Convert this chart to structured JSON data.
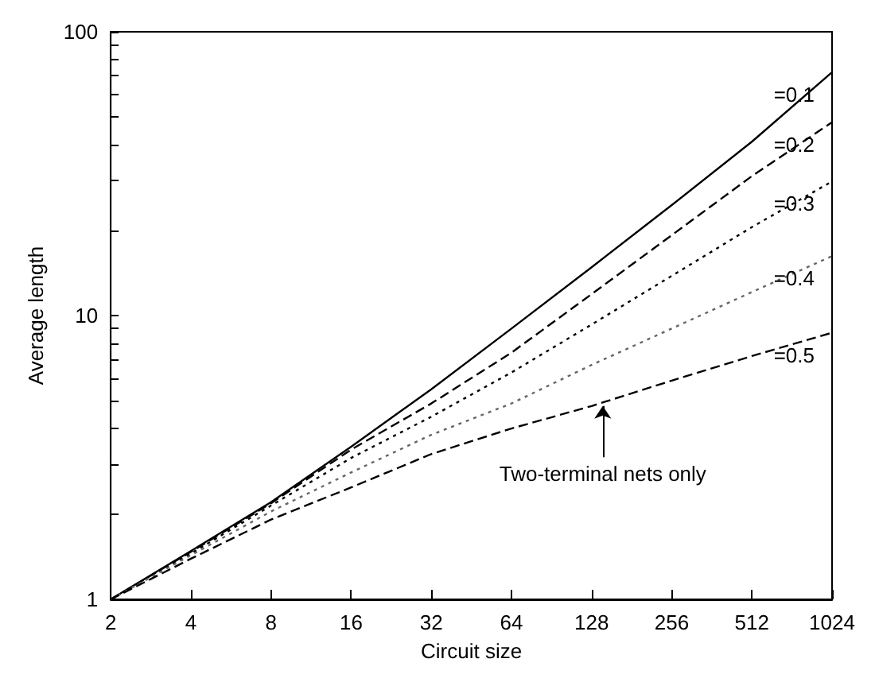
{
  "chart_data": {
    "type": "line",
    "xlabel": "Circuit size",
    "ylabel": "Average length",
    "x": [
      2,
      4,
      8,
      16,
      32,
      64,
      128,
      256,
      512,
      1024
    ],
    "series": [
      {
        "name": "=0.1",
        "color": "#000000",
        "line_style": "solid",
        "values": [
          1,
          1.48,
          2.2,
          3.45,
          5.5,
          9.0,
          14.8,
          24.5,
          41,
          72
        ]
      },
      {
        "name": "=0.2",
        "color": "#000000",
        "line_style": "dashed",
        "values": [
          1,
          1.47,
          2.18,
          3.37,
          4.9,
          7.4,
          11.9,
          19.2,
          31,
          48
        ]
      },
      {
        "name": "=0.3",
        "color": "#000000",
        "line_style": "dotted",
        "values": [
          1,
          1.45,
          2.14,
          3.15,
          4.4,
          6.3,
          9.3,
          13.8,
          20.5,
          29.7
        ]
      },
      {
        "name": "=0.4",
        "color": "#666666",
        "line_style": "dotted",
        "values": [
          1,
          1.43,
          2.04,
          2.8,
          3.8,
          4.9,
          6.7,
          9.0,
          12.1,
          16.2
        ]
      },
      {
        "name": "=0.5",
        "color": "#000000",
        "line_style": "dashed",
        "values": [
          1,
          1.39,
          1.91,
          2.48,
          3.25,
          4.0,
          4.8,
          5.9,
          7.2,
          8.7
        ]
      }
    ],
    "annotations": [
      {
        "text": "Two-terminal nets only",
        "x": 141,
        "y": 4.95
      }
    ],
    "log": "xy",
    "xlim": [
      2,
      1024
    ],
    "ylim": [
      1,
      100
    ],
    "xticks": [
      2,
      4,
      8,
      16,
      32,
      64,
      128,
      256,
      512,
      1024
    ],
    "yticks": [
      1,
      {
        "value": 2,
        "label": null
      },
      {
        "value": 3,
        "label": null
      },
      {
        "value": 4,
        "label": null
      },
      {
        "value": 5,
        "label": null
      },
      {
        "value": 6,
        "label": null
      },
      {
        "value": 7,
        "label": null
      },
      {
        "value": 8,
        "label": null
      },
      {
        "value": 9,
        "label": null
      },
      10,
      {
        "value": 20,
        "label": null
      },
      {
        "value": 30,
        "label": null
      },
      {
        "value": 40,
        "label": null
      },
      {
        "value": 50,
        "label": null
      },
      {
        "value": 60,
        "label": null
      },
      {
        "value": 70,
        "label": null
      },
      {
        "value": 80,
        "label": null
      },
      {
        "value": 90,
        "label": null
      },
      100
    ],
    "legend": false,
    "grid": false,
    "marker": "none"
  }
}
